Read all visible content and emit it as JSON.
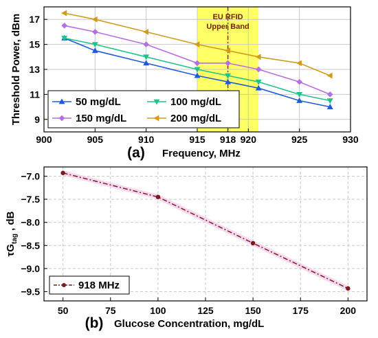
{
  "chart_data": [
    {
      "type": "line",
      "panel_label": "(a)",
      "xlabel": "Frequency, MHz",
      "ylabel": "Threshold Power, dBm",
      "xlim": [
        900,
        930
      ],
      "ylim": [
        8,
        18
      ],
      "x_ticks": [
        "900",
        "905",
        "910",
        "915",
        "918",
        "920",
        "925",
        "930"
      ],
      "y_ticks": [
        "9",
        "11",
        "13",
        "15",
        "17"
      ],
      "grid": true,
      "legend_position": "bottom-left",
      "x": [
        902,
        905,
        910,
        915,
        918,
        921,
        925,
        928
      ],
      "series": [
        {
          "name": "50 mg/dL",
          "color": "#1f5bd8",
          "marker": "triangle-up",
          "values": [
            15.5,
            14.5,
            13.5,
            12.5,
            12.0,
            11.5,
            10.5,
            10.0
          ]
        },
        {
          "name": "100 mg/dL",
          "color": "#1fc48a",
          "marker": "triangle-down",
          "values": [
            15.5,
            15.0,
            14.0,
            13.0,
            12.5,
            12.0,
            11.0,
            10.5
          ]
        },
        {
          "name": "150 mg/dL",
          "color": "#b66ee0",
          "marker": "diamond",
          "values": [
            16.5,
            16.0,
            15.0,
            13.5,
            13.5,
            13.0,
            12.0,
            11.0
          ]
        },
        {
          "name": "200 mg/dL",
          "color": "#d49a1a",
          "marker": "triangle-left",
          "values": [
            17.5,
            17.0,
            16.0,
            15.0,
            14.5,
            14.0,
            13.5,
            12.5
          ]
        }
      ],
      "annotations": {
        "band_label_line1": "EU RFID",
        "band_label_line2": "Upper Band",
        "band_range": [
          915,
          921
        ],
        "band_color": "#ffff66",
        "marker_x": 918,
        "marker_color": "#a01010"
      }
    },
    {
      "type": "line",
      "panel_label": "(b)",
      "xlabel": "Glucose Concentration, mg/dL",
      "ylabel_prefix": "τG",
      "ylabel_subscript": "tag",
      "ylabel_suffix": " , dB",
      "xlim": [
        40,
        210
      ],
      "ylim": [
        -9.7,
        -6.8
      ],
      "x_ticks": [
        "50",
        "75",
        "100",
        "125",
        "150",
        "175",
        "200"
      ],
      "y_ticks": [
        "-7.0",
        "-7.5",
        "-8.0",
        "-8.5",
        "-9.0",
        "-9.5"
      ],
      "grid": true,
      "legend_position": "bottom-left",
      "x": [
        50,
        100,
        150,
        200
      ],
      "series": [
        {
          "name": "918 MHz",
          "color": "#7a1a1a",
          "marker": "circle",
          "values": [
            -6.93,
            -7.45,
            -8.45,
            -9.43
          ]
        }
      ]
    }
  ]
}
